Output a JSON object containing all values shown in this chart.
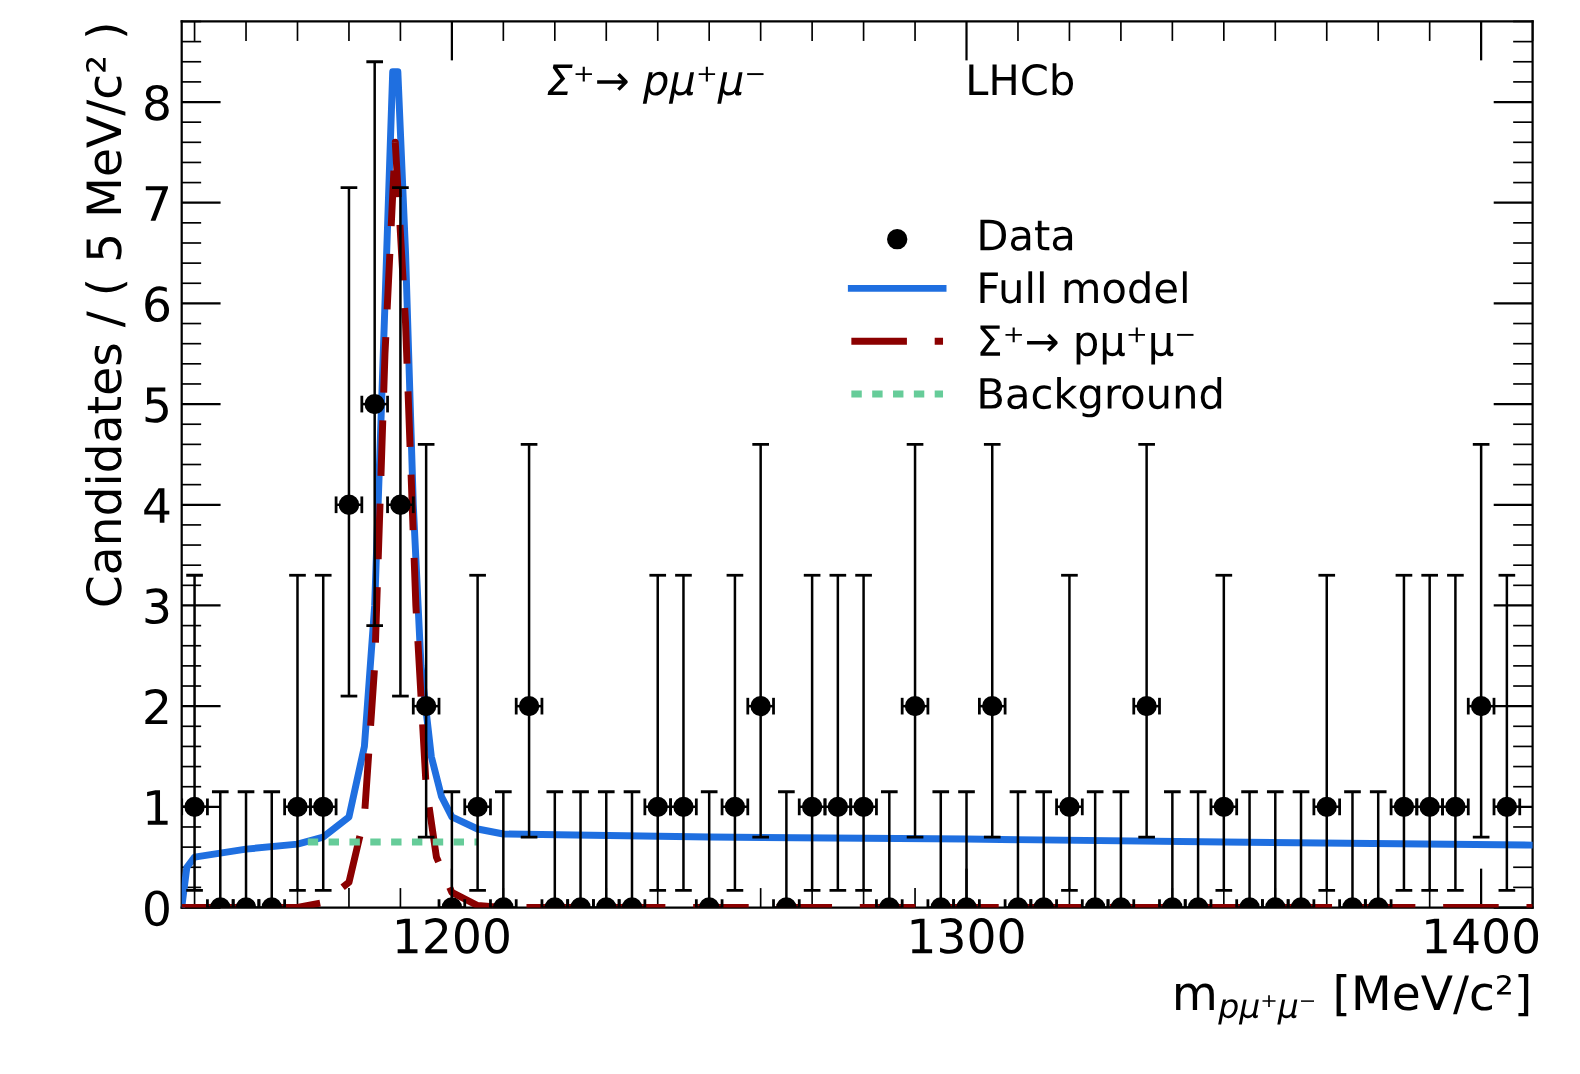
{
  "chart_data": {
    "type": "scatter",
    "xlabel": "m$_{pμ⁺μ⁻}$ [MeV/c²]",
    "ylabel": "Candidates / ( 5 MeV/c² )",
    "annotations": [
      "Σ⁺→ pμ⁺μ⁻",
      "LHCb"
    ],
    "xlim": [
      1147.5,
      1410
    ],
    "xticks": [
      1200,
      1300,
      1400
    ],
    "ylim": [
      0,
      8.8
    ],
    "yticks": [
      0,
      1,
      2,
      3,
      4,
      5,
      6,
      7,
      8
    ],
    "legend": "top right",
    "grid": false,
    "series": [
      {
        "name": "Data",
        "marker": "circle",
        "color": "#000000",
        "x": [
          1150,
          1155,
          1160,
          1165,
          1170,
          1175,
          1180,
          1185,
          1190,
          1195,
          1200,
          1205,
          1210,
          1215,
          1220,
          1225,
          1230,
          1235,
          1240,
          1245,
          1250,
          1255,
          1260,
          1265,
          1270,
          1275,
          1280,
          1285,
          1290,
          1295,
          1300,
          1305,
          1310,
          1315,
          1320,
          1325,
          1330,
          1335,
          1340,
          1345,
          1350,
          1355,
          1360,
          1365,
          1370,
          1375,
          1380,
          1385,
          1390,
          1395,
          1400,
          1405
        ],
        "values": [
          1,
          0,
          0,
          0,
          1,
          1,
          4,
          5,
          4,
          2,
          0,
          1,
          0,
          2,
          0,
          0,
          0,
          0,
          1,
          1,
          0,
          1,
          2,
          0,
          1,
          1,
          1,
          0,
          2,
          0,
          0,
          2,
          0,
          0,
          1,
          0,
          0,
          2,
          0,
          0,
          1,
          0,
          0,
          0,
          1,
          0,
          0,
          1,
          1,
          1,
          2,
          1
        ],
        "errors": [
          [
            0.17,
            3.3
          ],
          [
            0,
            1.15
          ],
          [
            0,
            1.15
          ],
          [
            0,
            1.15
          ],
          [
            0.17,
            3.3
          ],
          [
            0.17,
            3.3
          ],
          [
            2.1,
            7.15
          ],
          [
            2.8,
            8.4
          ],
          [
            2.1,
            7.15
          ],
          [
            0.7,
            4.6
          ],
          [
            0,
            1.15
          ],
          [
            0.17,
            3.3
          ],
          [
            0,
            1.15
          ],
          [
            0.7,
            4.6
          ],
          [
            0,
            1.15
          ],
          [
            0,
            1.15
          ],
          [
            0,
            1.15
          ],
          [
            0,
            1.15
          ],
          [
            0.17,
            3.3
          ],
          [
            0.17,
            3.3
          ],
          [
            0,
            1.15
          ],
          [
            0.17,
            3.3
          ],
          [
            0.7,
            4.6
          ],
          [
            0,
            1.15
          ],
          [
            0.17,
            3.3
          ],
          [
            0.17,
            3.3
          ],
          [
            0.17,
            3.3
          ],
          [
            0,
            1.15
          ],
          [
            0.7,
            4.6
          ],
          [
            0,
            1.15
          ],
          [
            0,
            1.15
          ],
          [
            0.7,
            4.6
          ],
          [
            0,
            1.15
          ],
          [
            0,
            1.15
          ],
          [
            0.17,
            3.3
          ],
          [
            0,
            1.15
          ],
          [
            0,
            1.15
          ],
          [
            0.7,
            4.6
          ],
          [
            0,
            1.15
          ],
          [
            0,
            1.15
          ],
          [
            0.17,
            3.3
          ],
          [
            0,
            1.15
          ],
          [
            0,
            1.15
          ],
          [
            0,
            1.15
          ],
          [
            0.17,
            3.3
          ],
          [
            0,
            1.15
          ],
          [
            0,
            1.15
          ],
          [
            0.17,
            3.3
          ],
          [
            0.17,
            3.3
          ],
          [
            0.17,
            3.3
          ],
          [
            0.7,
            4.6
          ],
          [
            0.17,
            3.3
          ]
        ],
        "xerrors": [
          2.5,
          2.5,
          2.5,
          2.5,
          2.5,
          2.5,
          2.5,
          2.5,
          2.5,
          2.5,
          2.5,
          2.5,
          2.5,
          2.5,
          2.5,
          2.5,
          2.5,
          2.5,
          2.5,
          2.5,
          2.5,
          2.5,
          2.5,
          2.5,
          2.5,
          2.5,
          2.5,
          2.5,
          2.5,
          2.5,
          2.5,
          2.5,
          2.5,
          2.5,
          2.5,
          2.5,
          2.5,
          2.5,
          2.5,
          2.5,
          2.5,
          2.5,
          2.5,
          2.5,
          2.5,
          2.5,
          2.5,
          2.5,
          2.5,
          2.5,
          2.5,
          2.5
        ]
      },
      {
        "name": "Full model",
        "type": "line",
        "line_style": "solid",
        "color": "#1f6fe0",
        "x": [
          1147.5,
          1148.5,
          1150,
          1160,
          1170,
          1175,
          1180,
          1183,
          1185,
          1187,
          1188.5,
          1189.5,
          1191,
          1192.5,
          1194,
          1196,
          1198,
          1200,
          1205,
          1210,
          1250,
          1300,
          1350,
          1410
        ],
        "values": [
          0.0,
          0.4,
          0.5,
          0.58,
          0.63,
          0.7,
          0.9,
          1.6,
          3.0,
          6.0,
          8.3,
          8.3,
          6.5,
          4.0,
          2.4,
          1.5,
          1.1,
          0.9,
          0.78,
          0.73,
          0.7,
          0.68,
          0.65,
          0.62
        ]
      },
      {
        "name": "Σ⁺→ pμ⁺μ⁻",
        "type": "line",
        "line_style": "dashed",
        "color": "#8b0000",
        "x": [
          1147.5,
          1170,
          1175,
          1180,
          1183,
          1185,
          1187,
          1189,
          1191,
          1193,
          1195,
          1197,
          1200,
          1205,
          1210,
          1410
        ],
        "values": [
          0,
          0,
          0.05,
          0.25,
          0.9,
          2.4,
          5.5,
          7.6,
          5.8,
          3.0,
          1.2,
          0.5,
          0.15,
          0.02,
          0,
          0
        ]
      },
      {
        "name": "Background",
        "type": "line",
        "line_style": "dotted",
        "color": "#66cc99",
        "x": [
          1172,
          1205
        ],
        "values": [
          0.65,
          0.65
        ]
      }
    ]
  }
}
